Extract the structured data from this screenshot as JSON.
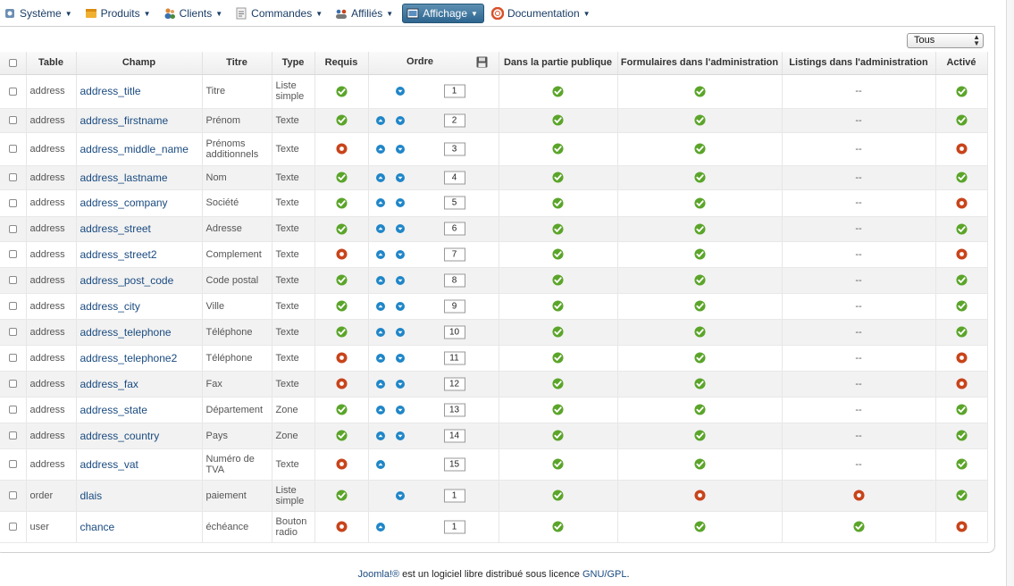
{
  "menu": [
    {
      "label": "Système",
      "icon": "system-icon",
      "active": false
    },
    {
      "label": "Produits",
      "icon": "products-icon",
      "active": false
    },
    {
      "label": "Clients",
      "icon": "clients-icon",
      "active": false
    },
    {
      "label": "Commandes",
      "icon": "orders-icon",
      "active": false
    },
    {
      "label": "Affiliés",
      "icon": "affiliates-icon",
      "active": false
    },
    {
      "label": "Affichage",
      "icon": "display-icon",
      "active": true
    },
    {
      "label": "Documentation",
      "icon": "help-icon",
      "active": false
    }
  ],
  "filter": {
    "selected": "Tous"
  },
  "columns": {
    "table": "Table",
    "champ": "Champ",
    "titre": "Titre",
    "type": "Type",
    "requis": "Requis",
    "ordre": "Ordre",
    "public": "Dans la partie publique",
    "forms_admin": "Formulaires dans l'administration",
    "listings_admin": "Listings dans l'administration",
    "active": "Activé"
  },
  "colors": {
    "ok": "#5ba52a",
    "no": "#c8441b",
    "arrow": "#1f86c8",
    "link": "#1a4b80"
  },
  "rows": [
    {
      "table": "address",
      "champ": "address_title",
      "titre": "Titre",
      "type": "Liste simple",
      "requis": true,
      "up": false,
      "down": true,
      "order": "1",
      "public": true,
      "forms": true,
      "listings": "--",
      "active": true,
      "h": 38
    },
    {
      "table": "address",
      "champ": "address_firstname",
      "titre": "Prénom",
      "type": "Texte",
      "requis": true,
      "up": true,
      "down": true,
      "order": "2",
      "public": true,
      "forms": true,
      "listings": "--",
      "active": true,
      "h": 27
    },
    {
      "table": "address",
      "champ": "address_middle_name",
      "titre": "Prénoms additionnels",
      "type": "Texte",
      "requis": false,
      "up": true,
      "down": true,
      "order": "3",
      "public": true,
      "forms": true,
      "listings": "--",
      "active": false,
      "h": 37
    },
    {
      "table": "address",
      "champ": "address_lastname",
      "titre": "Nom",
      "type": "Texte",
      "requis": true,
      "up": true,
      "down": true,
      "order": "4",
      "public": true,
      "forms": true,
      "listings": "--",
      "active": true,
      "h": 27
    },
    {
      "table": "address",
      "champ": "address_company",
      "titre": "Société",
      "type": "Texte",
      "requis": true,
      "up": true,
      "down": true,
      "order": "5",
      "public": true,
      "forms": true,
      "listings": "--",
      "active": false,
      "h": 30
    },
    {
      "table": "address",
      "champ": "address_street",
      "titre": "Adresse",
      "type": "Texte",
      "requis": true,
      "up": true,
      "down": true,
      "order": "6",
      "public": true,
      "forms": true,
      "listings": "--",
      "active": true,
      "h": 28
    },
    {
      "table": "address",
      "champ": "address_street2",
      "titre": "Complement",
      "type": "Texte",
      "requis": false,
      "up": true,
      "down": true,
      "order": "7",
      "public": true,
      "forms": true,
      "listings": "--",
      "active": false,
      "h": 29
    },
    {
      "table": "address",
      "champ": "address_post_code",
      "titre": "Code postal",
      "type": "Texte",
      "requis": true,
      "up": true,
      "down": true,
      "order": "8",
      "public": true,
      "forms": true,
      "listings": "--",
      "active": true,
      "h": 29
    },
    {
      "table": "address",
      "champ": "address_city",
      "titre": "Ville",
      "type": "Texte",
      "requis": true,
      "up": true,
      "down": true,
      "order": "9",
      "public": true,
      "forms": true,
      "listings": "--",
      "active": true,
      "h": 29
    },
    {
      "table": "address",
      "champ": "address_telephone",
      "titre": "Téléphone",
      "type": "Texte",
      "requis": true,
      "up": true,
      "down": true,
      "order": "10",
      "public": true,
      "forms": true,
      "listings": "--",
      "active": true,
      "h": 29
    },
    {
      "table": "address",
      "champ": "address_telephone2",
      "titre": "Téléphone",
      "type": "Texte",
      "requis": false,
      "up": true,
      "down": true,
      "order": "11",
      "public": true,
      "forms": true,
      "listings": "--",
      "active": false,
      "h": 29
    },
    {
      "table": "address",
      "champ": "address_fax",
      "titre": "Fax",
      "type": "Texte",
      "requis": false,
      "up": true,
      "down": true,
      "order": "12",
      "public": true,
      "forms": true,
      "listings": "--",
      "active": false,
      "h": 29
    },
    {
      "table": "address",
      "champ": "address_state",
      "titre": "Département",
      "type": "Zone",
      "requis": true,
      "up": true,
      "down": true,
      "order": "13",
      "public": true,
      "forms": true,
      "listings": "--",
      "active": true,
      "h": 29
    },
    {
      "table": "address",
      "champ": "address_country",
      "titre": "Pays",
      "type": "Zone",
      "requis": true,
      "up": true,
      "down": true,
      "order": "14",
      "public": true,
      "forms": true,
      "listings": "--",
      "active": true,
      "h": 29
    },
    {
      "table": "address",
      "champ": "address_vat",
      "titre": "Numéro de TVA",
      "type": "Texte",
      "requis": false,
      "up": true,
      "down": false,
      "order": "15",
      "public": true,
      "forms": true,
      "listings": "--",
      "active": true,
      "h": 35
    },
    {
      "table": "order",
      "champ": "dlais",
      "titre": "paiement",
      "type": "Liste simple",
      "requis": true,
      "up": false,
      "down": true,
      "order": "1",
      "public": true,
      "forms": false,
      "listings": false,
      "active": true,
      "h": 35
    },
    {
      "table": "user",
      "champ": "chance",
      "titre": "échéance",
      "type": "Bouton radio",
      "requis": false,
      "up": true,
      "down": false,
      "order": "1",
      "public": true,
      "forms": true,
      "listings": true,
      "active": false,
      "h": 35
    }
  ],
  "footer": {
    "brand": "Joomla!®",
    "text": " est un logiciel libre distribué sous licence ",
    "license": "GNU/GPL",
    "end": "."
  }
}
